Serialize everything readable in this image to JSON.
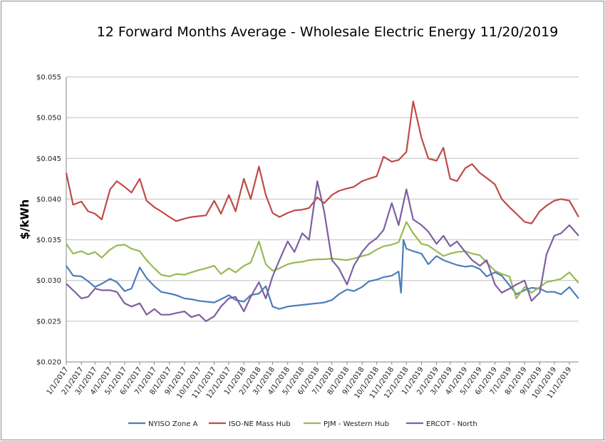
{
  "chart_data": {
    "type": "line",
    "title": "12 Forward Months Average - Wholesale Electric Energy 11/20/2019",
    "ylabel": "$/kWh",
    "xlabel": "",
    "ylim": [
      0.02,
      0.055
    ],
    "y_ticks": [
      "$0.020",
      "$0.025",
      "$0.030",
      "$0.035",
      "$0.040",
      "$0.045",
      "$0.050",
      "$0.055"
    ],
    "x_ticks": [
      "1/1/2017",
      "2/1/2017",
      "3/1/2017",
      "4/1/2017",
      "5/1/2017",
      "6/1/2017",
      "7/1/2017",
      "8/1/2017",
      "9/1/2017",
      "10/1/2017",
      "11/1/2017",
      "12/1/2017",
      "1/1/2018",
      "2/1/2018",
      "3/1/2018",
      "4/1/2018",
      "5/1/2018",
      "6/1/2018",
      "7/1/2018",
      "8/1/2018",
      "9/1/2018",
      "10/1/2018",
      "11/1/2018",
      "12/1/2018",
      "1/1/2019",
      "2/1/2019",
      "3/1/2019",
      "4/1/2019",
      "5/1/2019",
      "6/1/2019",
      "7/1/2019",
      "8/1/2019",
      "9/1/2019",
      "10/1/2019",
      "11/1/2019"
    ],
    "x_range": [
      "1/1/2017",
      "11/20/2019"
    ],
    "grid": true,
    "legend_position": "bottom",
    "series": [
      {
        "name": "NYISO Zone A",
        "color": "#4a7ebb",
        "x": [
          "1/1/2017",
          "1/15/2017",
          "2/1/2017",
          "2/15/2017",
          "3/1/2017",
          "3/15/2017",
          "4/1/2017",
          "4/15/2017",
          "5/1/2017",
          "5/15/2017",
          "6/1/2017",
          "6/15/2017",
          "7/1/2017",
          "7/15/2017",
          "8/1/2017",
          "8/15/2017",
          "9/1/2017",
          "9/15/2017",
          "10/1/2017",
          "10/15/2017",
          "11/1/2017",
          "11/15/2017",
          "12/1/2017",
          "12/15/2017",
          "1/1/2018",
          "1/15/2018",
          "2/1/2018",
          "2/15/2018",
          "3/1/2018",
          "3/15/2018",
          "4/1/2018",
          "4/15/2018",
          "5/1/2018",
          "5/15/2018",
          "6/1/2018",
          "6/15/2018",
          "7/1/2018",
          "7/15/2018",
          "8/1/2018",
          "8/15/2018",
          "9/1/2018",
          "9/15/2018",
          "10/1/2018",
          "10/15/2018",
          "11/1/2018",
          "11/15/2018",
          "11/20/2018",
          "11/25/2018",
          "12/1/2018",
          "12/15/2018",
          "1/1/2019",
          "1/15/2019",
          "2/1/2019",
          "2/15/2019",
          "3/1/2019",
          "3/15/2019",
          "4/1/2019",
          "4/15/2019",
          "5/1/2019",
          "5/15/2019",
          "6/1/2019",
          "6/15/2019",
          "7/1/2019",
          "7/15/2019",
          "8/1/2019",
          "8/15/2019",
          "9/1/2019",
          "9/15/2019",
          "10/1/2019",
          "10/15/2019",
          "11/1/2019",
          "11/20/2019"
        ],
        "y": [
          0.0318,
          0.0306,
          0.0305,
          0.0299,
          0.0292,
          0.0296,
          0.0302,
          0.0298,
          0.0287,
          0.029,
          0.0316,
          0.0303,
          0.0293,
          0.0286,
          0.0284,
          0.0282,
          0.0278,
          0.0277,
          0.0275,
          0.0274,
          0.0273,
          0.0277,
          0.0282,
          0.0276,
          0.0274,
          0.0282,
          0.0284,
          0.0293,
          0.0268,
          0.0265,
          0.0268,
          0.0269,
          0.027,
          0.0271,
          0.0272,
          0.0273,
          0.0276,
          0.0283,
          0.0289,
          0.0287,
          0.0292,
          0.0299,
          0.0301,
          0.0304,
          0.0306,
          0.0311,
          0.0285,
          0.035,
          0.0339,
          0.0336,
          0.0333,
          0.032,
          0.033,
          0.0325,
          0.0322,
          0.0319,
          0.0317,
          0.0318,
          0.0314,
          0.0305,
          0.031,
          0.0306,
          0.0294,
          0.0283,
          0.0288,
          0.0291,
          0.029,
          0.0286,
          0.0286,
          0.0283,
          0.0292,
          0.0278
        ]
      },
      {
        "name": "ISO-NE Mass Hub",
        "color": "#be4b48",
        "x": [
          "1/1/2017",
          "1/15/2017",
          "2/1/2017",
          "2/15/2017",
          "3/1/2017",
          "3/15/2017",
          "4/1/2017",
          "4/15/2017",
          "5/1/2017",
          "5/15/2017",
          "6/1/2017",
          "6/15/2017",
          "7/1/2017",
          "7/15/2017",
          "8/1/2017",
          "8/15/2017",
          "9/1/2017",
          "9/15/2017",
          "10/1/2017",
          "10/15/2017",
          "11/1/2017",
          "11/15/2017",
          "12/1/2017",
          "12/15/2017",
          "1/1/2018",
          "1/15/2018",
          "2/1/2018",
          "2/15/2018",
          "3/1/2018",
          "3/15/2018",
          "4/1/2018",
          "4/15/2018",
          "5/1/2018",
          "5/15/2018",
          "6/1/2018",
          "6/15/2018",
          "7/1/2018",
          "7/15/2018",
          "8/1/2018",
          "8/15/2018",
          "9/1/2018",
          "9/15/2018",
          "10/1/2018",
          "10/15/2018",
          "11/1/2018",
          "11/15/2018",
          "12/1/2018",
          "12/15/2018",
          "1/1/2019",
          "1/15/2019",
          "2/1/2019",
          "2/15/2019",
          "3/1/2019",
          "3/15/2019",
          "4/1/2019",
          "4/15/2019",
          "5/1/2019",
          "5/15/2019",
          "6/1/2019",
          "6/15/2019",
          "7/1/2019",
          "7/15/2019",
          "8/1/2019",
          "8/15/2019",
          "9/1/2019",
          "9/15/2019",
          "10/1/2019",
          "10/15/2019",
          "11/1/2019",
          "11/20/2019"
        ],
        "y": [
          0.0432,
          0.0393,
          0.0397,
          0.0385,
          0.0382,
          0.0375,
          0.0412,
          0.0422,
          0.0415,
          0.0408,
          0.0425,
          0.0398,
          0.039,
          0.0385,
          0.0378,
          0.0373,
          0.0376,
          0.0378,
          0.0379,
          0.038,
          0.0398,
          0.0382,
          0.0405,
          0.0385,
          0.0425,
          0.04,
          0.044,
          0.0405,
          0.0383,
          0.0378,
          0.0383,
          0.0386,
          0.0387,
          0.0389,
          0.0402,
          0.0395,
          0.0405,
          0.041,
          0.0413,
          0.0415,
          0.0422,
          0.0425,
          0.0428,
          0.0452,
          0.0446,
          0.0448,
          0.0458,
          0.052,
          0.0475,
          0.045,
          0.0447,
          0.0463,
          0.0425,
          0.0422,
          0.0438,
          0.0443,
          0.0432,
          0.0426,
          0.0418,
          0.04,
          0.039,
          0.0382,
          0.0372,
          0.037,
          0.0385,
          0.0392,
          0.0398,
          0.04,
          0.0398,
          0.0378
        ]
      },
      {
        "name": "PJM - Western Hub",
        "color": "#98b954",
        "x": [
          "1/1/2017",
          "1/15/2017",
          "2/1/2017",
          "2/15/2017",
          "3/1/2017",
          "3/15/2017",
          "4/1/2017",
          "4/15/2017",
          "5/1/2017",
          "5/15/2017",
          "6/1/2017",
          "6/15/2017",
          "7/1/2017",
          "7/15/2017",
          "8/1/2017",
          "8/15/2017",
          "9/1/2017",
          "9/15/2017",
          "10/1/2017",
          "10/15/2017",
          "11/1/2017",
          "11/15/2017",
          "12/1/2017",
          "12/15/2017",
          "1/1/2018",
          "1/15/2018",
          "2/1/2018",
          "2/15/2018",
          "3/1/2018",
          "3/15/2018",
          "4/1/2018",
          "4/15/2018",
          "5/1/2018",
          "5/15/2018",
          "6/1/2018",
          "6/15/2018",
          "7/1/2018",
          "7/15/2018",
          "8/1/2018",
          "8/15/2018",
          "9/1/2018",
          "9/15/2018",
          "10/1/2018",
          "10/15/2018",
          "11/1/2018",
          "11/15/2018",
          "12/1/2018",
          "12/15/2018",
          "1/1/2019",
          "1/15/2019",
          "2/1/2019",
          "2/15/2019",
          "3/1/2019",
          "3/15/2019",
          "4/1/2019",
          "4/15/2019",
          "5/1/2019",
          "5/15/2019",
          "6/1/2019",
          "6/15/2019",
          "7/1/2019",
          "7/15/2019",
          "8/1/2019",
          "8/15/2019",
          "9/1/2019",
          "9/15/2019",
          "10/1/2019",
          "10/15/2019",
          "11/1/2019",
          "11/20/2019"
        ],
        "y": [
          0.0345,
          0.0333,
          0.0336,
          0.0332,
          0.0335,
          0.0328,
          0.0338,
          0.0343,
          0.0344,
          0.0339,
          0.0336,
          0.0325,
          0.0315,
          0.0307,
          0.0305,
          0.0308,
          0.0307,
          0.031,
          0.0313,
          0.0315,
          0.0318,
          0.0308,
          0.0315,
          0.031,
          0.0318,
          0.0322,
          0.0348,
          0.032,
          0.0312,
          0.0315,
          0.032,
          0.0322,
          0.0323,
          0.0325,
          0.0326,
          0.0326,
          0.0327,
          0.0326,
          0.0325,
          0.0327,
          0.033,
          0.0332,
          0.0338,
          0.0342,
          0.0344,
          0.0347,
          0.0372,
          0.0358,
          0.0345,
          0.0343,
          0.0336,
          0.033,
          0.0333,
          0.0335,
          0.0336,
          0.0333,
          0.0331,
          0.0322,
          0.0312,
          0.0308,
          0.0305,
          0.0278,
          0.0292,
          0.0285,
          0.0292,
          0.0298,
          0.03,
          0.0302,
          0.031,
          0.0297
        ]
      },
      {
        "name": "ERCOT - North",
        "color": "#7d60a0",
        "x": [
          "1/1/2017",
          "1/15/2017",
          "2/1/2017",
          "2/15/2017",
          "3/1/2017",
          "3/15/2017",
          "4/1/2017",
          "4/15/2017",
          "5/1/2017",
          "5/15/2017",
          "6/1/2017",
          "6/15/2017",
          "7/1/2017",
          "7/15/2017",
          "8/1/2017",
          "8/15/2017",
          "9/1/2017",
          "9/15/2017",
          "10/1/2017",
          "10/15/2017",
          "11/1/2017",
          "11/15/2017",
          "12/1/2017",
          "12/15/2017",
          "1/1/2018",
          "1/15/2018",
          "2/1/2018",
          "2/15/2018",
          "3/1/2018",
          "3/15/2018",
          "4/1/2018",
          "4/15/2018",
          "5/1/2018",
          "5/15/2018",
          "6/1/2018",
          "6/15/2018",
          "7/1/2018",
          "7/15/2018",
          "8/1/2018",
          "8/15/2018",
          "9/1/2018",
          "9/15/2018",
          "10/1/2018",
          "10/15/2018",
          "11/1/2018",
          "11/15/2018",
          "12/1/2018",
          "12/15/2018",
          "1/1/2019",
          "1/15/2019",
          "2/1/2019",
          "2/15/2019",
          "3/1/2019",
          "3/15/2019",
          "4/1/2019",
          "4/15/2019",
          "5/1/2019",
          "5/15/2019",
          "6/1/2019",
          "6/15/2019",
          "7/1/2019",
          "7/15/2019",
          "8/1/2019",
          "8/15/2019",
          "9/1/2019",
          "9/15/2019",
          "10/1/2019",
          "10/15/2019",
          "11/1/2019",
          "11/20/2019"
        ],
        "y": [
          0.0296,
          0.0288,
          0.0278,
          0.028,
          0.029,
          0.0288,
          0.0288,
          0.0286,
          0.0272,
          0.0268,
          0.0272,
          0.0258,
          0.0265,
          0.0258,
          0.0258,
          0.026,
          0.0262,
          0.0255,
          0.0258,
          0.025,
          0.0256,
          0.0268,
          0.0278,
          0.028,
          0.0262,
          0.028,
          0.0298,
          0.0278,
          0.0305,
          0.0325,
          0.0348,
          0.0335,
          0.0358,
          0.035,
          0.0422,
          0.0385,
          0.0325,
          0.0315,
          0.0295,
          0.0318,
          0.0335,
          0.0345,
          0.0352,
          0.0362,
          0.0395,
          0.0368,
          0.0412,
          0.0375,
          0.0368,
          0.036,
          0.0345,
          0.0355,
          0.0342,
          0.0348,
          0.0335,
          0.0325,
          0.0318,
          0.0325,
          0.0295,
          0.0285,
          0.029,
          0.0295,
          0.03,
          0.0275,
          0.0285,
          0.0332,
          0.0355,
          0.0358,
          0.0368,
          0.0355
        ]
      }
    ]
  }
}
